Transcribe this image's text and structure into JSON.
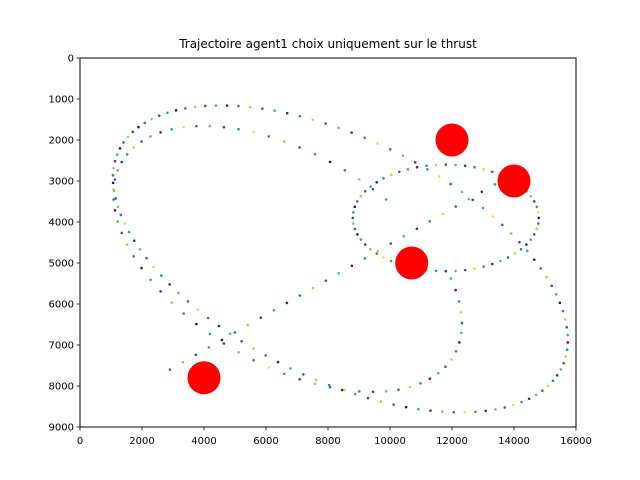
{
  "chart_data": {
    "type": "scatter",
    "title": "Trajectoire agent1 choix uniquement sur le thrust",
    "xlabel": "",
    "ylabel": "",
    "xlim": [
      0,
      16000
    ],
    "ylim": [
      9000,
      0
    ],
    "y_inverted": true,
    "x_ticks": [
      "0",
      "2000",
      "4000",
      "6000",
      "8000",
      "10000",
      "12000",
      "14000",
      "16000"
    ],
    "y_ticks": [
      "0",
      "1000",
      "2000",
      "3000",
      "4000",
      "5000",
      "6000",
      "7000",
      "8000",
      "9000"
    ],
    "grid": false,
    "legend": "none",
    "targets": {
      "color": "#ff0000",
      "points": [
        {
          "x": 12000,
          "y": 2000
        },
        {
          "x": 14000,
          "y": 3000
        },
        {
          "x": 10700,
          "y": 5000
        },
        {
          "x": 4000,
          "y": 7800
        }
      ]
    },
    "trajectory": {
      "colormap": "viridis",
      "segments": [
        {
          "name": "outer-large-orbit",
          "center": [
            8400,
            4900
          ],
          "radius": [
            7650,
            3050
          ],
          "tilt_deg": 18,
          "start_deg": 200,
          "sweep_deg": 360,
          "points": 110
        },
        {
          "name": "middle-orbit",
          "center": [
            6700,
            4900
          ],
          "radius": [
            5900,
            2700
          ],
          "tilt_deg": 20,
          "start_deg": 330,
          "sweep_deg": 330,
          "points": 65
        },
        {
          "name": "inner-orbit",
          "center": [
            11800,
            3900
          ],
          "radius": [
            3000,
            1300
          ],
          "tilt_deg": 0,
          "start_deg": 0,
          "sweep_deg": 360,
          "points": 60
        },
        {
          "name": "diagonal-link",
          "from": [
            2900,
            7600
          ],
          "to": [
            13800,
            2900
          ],
          "points": 26
        }
      ]
    }
  }
}
